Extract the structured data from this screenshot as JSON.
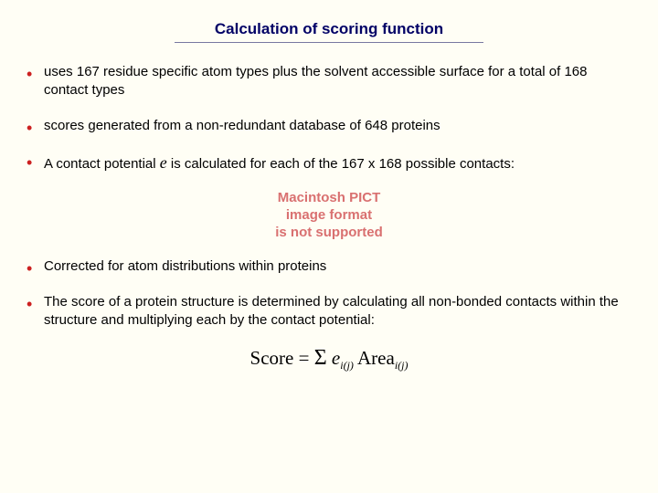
{
  "title": "Calculation of scoring function",
  "bullets": {
    "b1": "uses 167 residue specific atom types plus the solvent accessible surface for a total of 168 contact types",
    "b2": "scores generated from a non-redundant database of 648 proteins",
    "b3a": "A contact potential ",
    "b3_e": "e",
    "b3b": " is calculated for each of the 167 x 168 possible contacts:",
    "b4": "Corrected for atom distributions within proteins",
    "b5": "The score of a protein structure is determined by calculating all non-bonded contacts within the structure and multiplying each by the contact potential:"
  },
  "placeholder": {
    "l1": "Macintosh PICT",
    "l2": "image format",
    "l3": "is not supported"
  },
  "formula": {
    "score": "Score = ",
    "sigma": "Σ",
    "e": " e",
    "sub1": "i(j)",
    "area": " Area",
    "sub2": "i(j)"
  },
  "colors": {
    "bg": "#fffef5",
    "title": "#000066",
    "bullet_marker": "#cc2020",
    "placeholder_text": "#d97070",
    "underline": "#7878a0"
  }
}
